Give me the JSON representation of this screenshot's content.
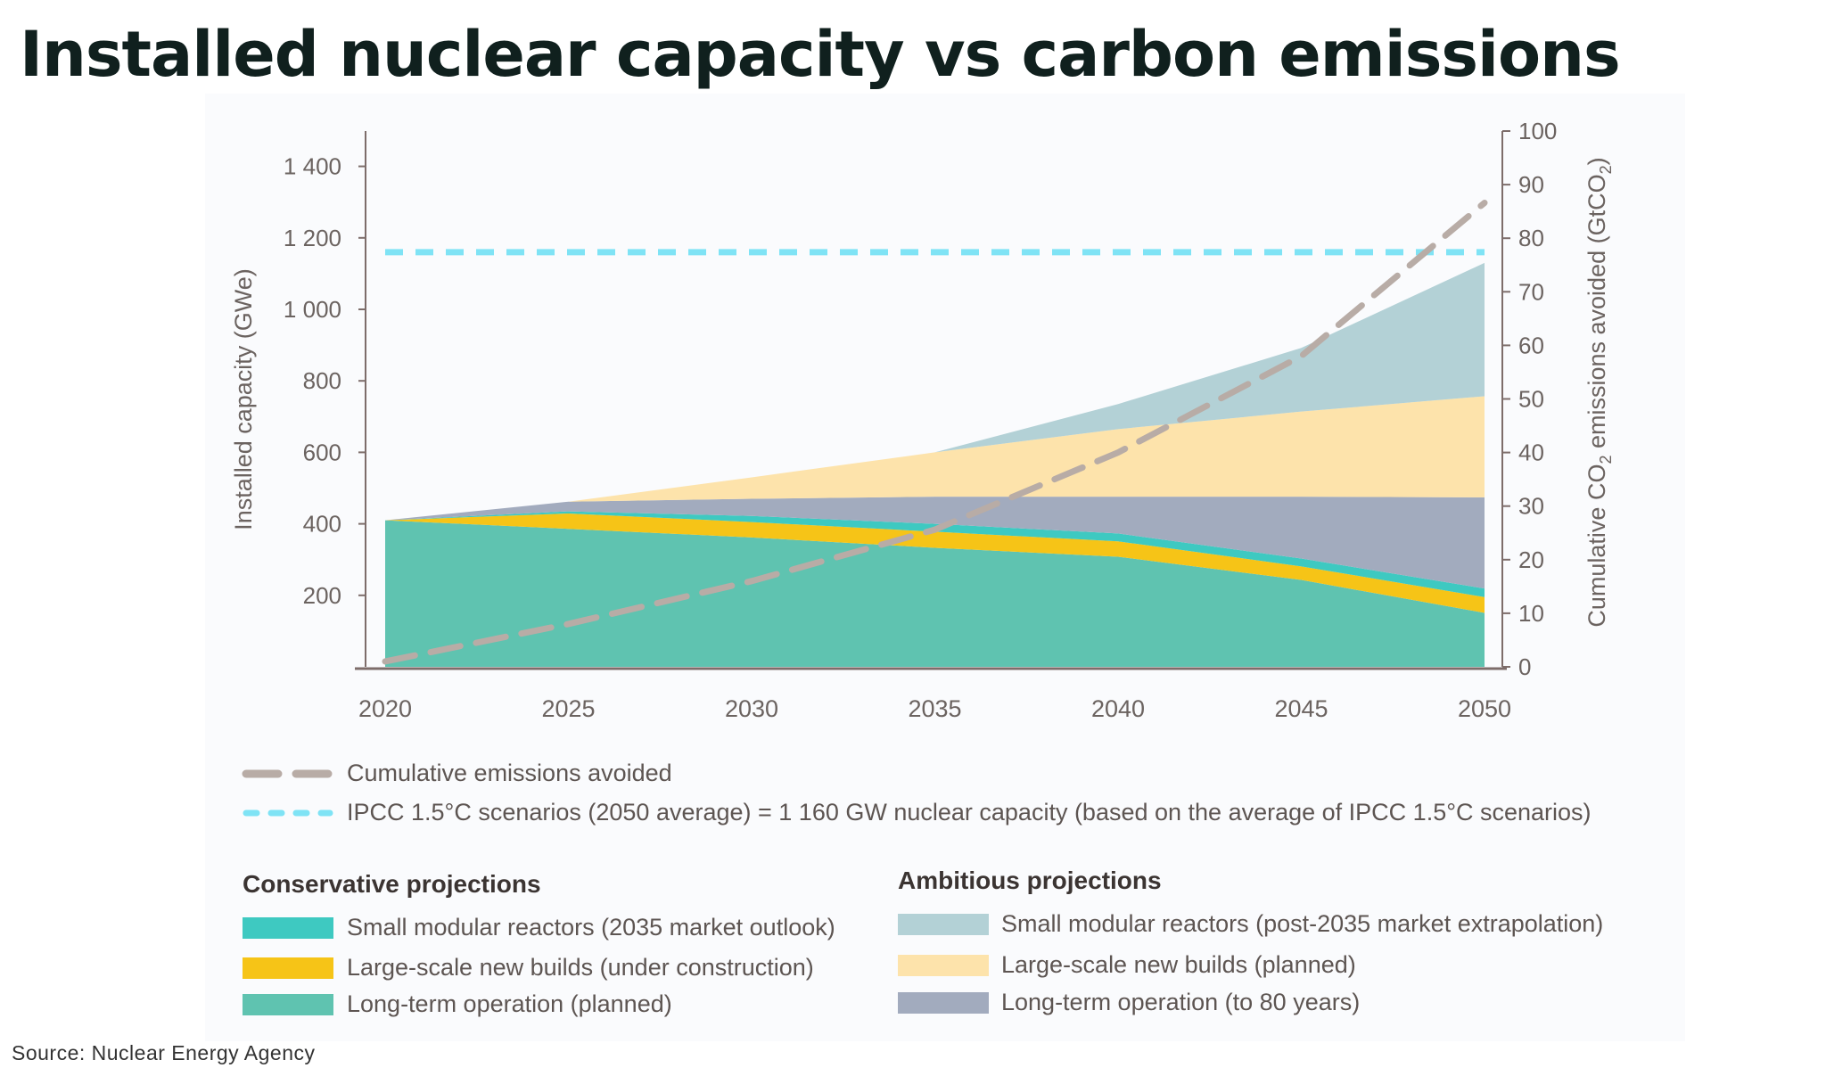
{
  "title": "Installed nuclear capacity vs carbon emissions",
  "source": "Source: Nuclear Energy Agency",
  "chart_data": {
    "type": "area",
    "stacked": true,
    "x": [
      2020,
      2025,
      2030,
      2035,
      2040,
      2045,
      2050
    ],
    "x_tick_labels": [
      "2020",
      "2025",
      "2030",
      "2035",
      "2040",
      "2045",
      "2050"
    ],
    "ylabel": "Installed capacity (GWe)",
    "ylim": [
      0,
      1500
    ],
    "y_ticks": [
      200,
      400,
      600,
      800,
      1000,
      1200,
      1400
    ],
    "y_tick_labels": [
      "200",
      "400",
      "600",
      "800",
      "1 000",
      "1 200",
      "1 400"
    ],
    "y2label": "Cumulative CO2 emissions avoided (GtCO2)",
    "y2label_main": "Cumulative CO",
    "y2label_sub": "2",
    "y2label_mid": " emissions avoided (GtCO",
    "y2label_end": ")",
    "y2lim": [
      0,
      100
    ],
    "y2_ticks": [
      0,
      10,
      20,
      30,
      40,
      50,
      60,
      70,
      80,
      90,
      100
    ],
    "y2_tick_labels": [
      "0",
      "10",
      "20",
      "30",
      "40",
      "50",
      "60",
      "70",
      "80",
      "90",
      "100"
    ],
    "grid": false,
    "series": [
      {
        "name": "Long-term operation (planned)",
        "group": "Conservative projections",
        "color": "#5fc3b0",
        "values": [
          410,
          386,
          362,
          333,
          308,
          243,
          151
        ]
      },
      {
        "name": "Large-scale new builds (under construction)",
        "group": "Conservative projections",
        "color": "#f6c417",
        "values": [
          0,
          43,
          43,
          45,
          43,
          38,
          44
        ]
      },
      {
        "name": "Small modular reactors (2035 market outlook)",
        "group": "Conservative projections",
        "color": "#3ec9c1",
        "values": [
          0,
          6,
          17,
          22,
          22,
          22,
          24
        ]
      },
      {
        "name": "Long-term operation (to 80 years)",
        "group": "Ambitious projections",
        "color": "#a2abbe",
        "values": [
          0,
          27,
          48,
          76,
          103,
          173,
          255
        ]
      },
      {
        "name": "Large-scale new builds (planned)",
        "group": "Ambitious projections",
        "color": "#fde3ab",
        "values": [
          0,
          0,
          60,
          124,
          189,
          238,
          283
        ]
      },
      {
        "name": "Small modular reactors (post-2035 market extrapolation)",
        "group": "Ambitious projections",
        "color": "#b3d1d6",
        "values": [
          0,
          0,
          0,
          0,
          70,
          178,
          373
        ]
      }
    ],
    "lines": [
      {
        "name": "Cumulative emissions avoided",
        "axis": "right",
        "style": "dashed",
        "color": "#b8aca6",
        "values": [
          1,
          8,
          16,
          25.6,
          40,
          58,
          86.6
        ]
      },
      {
        "name": "IPCC 1.5°C scenarios (2050 average) = 1 160 GW nuclear capacity (based on the average of IPCC 1.5°C scenarios)",
        "axis": "left",
        "style": "dashed",
        "color": "#7fe3f5",
        "constant": 1160
      }
    ],
    "legend": {
      "placement": "bottom",
      "conservative_heading": "Conservative projections",
      "ambitious_heading": "Ambitious projections"
    }
  }
}
